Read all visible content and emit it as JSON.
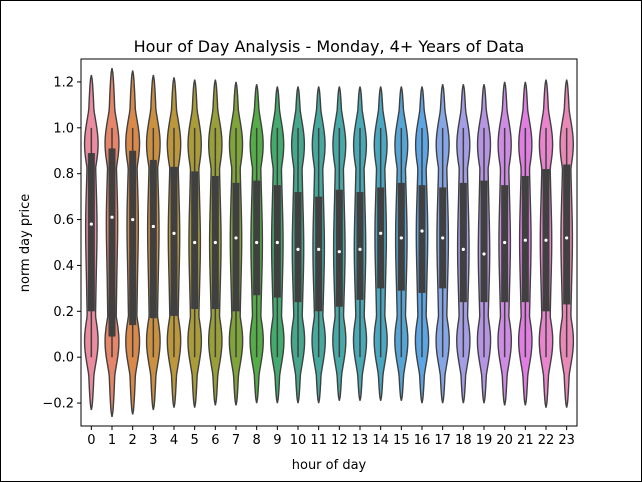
{
  "chart_data": {
    "type": "violin",
    "title": "Hour of Day Analysis - Monday, 4+ Years of Data",
    "xlabel": "hour of day",
    "ylabel": "norm day price",
    "categories": [
      "0",
      "1",
      "2",
      "3",
      "4",
      "5",
      "6",
      "7",
      "8",
      "9",
      "10",
      "11",
      "12",
      "13",
      "14",
      "15",
      "16",
      "17",
      "18",
      "19",
      "20",
      "21",
      "22",
      "23"
    ],
    "ylim": [
      -0.3,
      1.3
    ],
    "yticks": [
      -0.2,
      0.0,
      0.2,
      0.4,
      0.6,
      0.8,
      1.0,
      1.2
    ],
    "ytick_labels": [
      "−0.2",
      "0.0",
      "0.2",
      "0.4",
      "0.6",
      "0.8",
      "1.0",
      "1.2"
    ],
    "grid": false,
    "colors": [
      "#ea8ba0",
      "#e5856a",
      "#d9894a",
      "#cc9041",
      "#bc973b",
      "#aa9c39",
      "#999f39",
      "#7ea43a",
      "#55ad48",
      "#43ab6e",
      "#45a88c",
      "#46a99e",
      "#47a9a8",
      "#49a9b4",
      "#4aa8c3",
      "#55a6d7",
      "#5da6e6",
      "#86a7e7",
      "#a39ee5",
      "#b695e5",
      "#cf8ce5",
      "#e07ee2",
      "#e885cc",
      "#ea89b7"
    ],
    "medians": [
      0.58,
      0.61,
      0.6,
      0.57,
      0.54,
      0.5,
      0.5,
      0.52,
      0.5,
      0.5,
      0.47,
      0.47,
      0.46,
      0.47,
      0.54,
      0.52,
      0.55,
      0.52,
      0.47,
      0.45,
      0.5,
      0.51,
      0.51,
      0.52
    ],
    "q1": [
      0.2,
      0.09,
      0.14,
      0.17,
      0.18,
      0.21,
      0.21,
      0.2,
      0.27,
      0.26,
      0.24,
      0.2,
      0.22,
      0.25,
      0.3,
      0.29,
      0.28,
      0.3,
      0.24,
      0.24,
      0.24,
      0.24,
      0.2,
      0.23
    ],
    "q3": [
      0.89,
      0.91,
      0.9,
      0.86,
      0.83,
      0.81,
      0.79,
      0.76,
      0.77,
      0.75,
      0.72,
      0.7,
      0.73,
      0.72,
      0.74,
      0.76,
      0.75,
      0.74,
      0.76,
      0.77,
      0.75,
      0.79,
      0.82,
      0.84
    ],
    "whisker_low": [
      0.0,
      0.0,
      0.0,
      0.0,
      0.0,
      0.0,
      0.0,
      0.0,
      0.0,
      0.0,
      0.0,
      0.0,
      0.0,
      0.0,
      0.0,
      0.0,
      0.0,
      0.0,
      0.0,
      0.0,
      0.0,
      0.0,
      0.0,
      0.0
    ],
    "whisker_high": [
      1.0,
      1.0,
      1.0,
      1.0,
      1.0,
      1.0,
      1.0,
      1.0,
      1.0,
      1.0,
      1.0,
      1.0,
      1.0,
      1.0,
      1.0,
      1.0,
      1.0,
      1.0,
      1.0,
      1.0,
      1.0,
      1.0,
      1.0,
      1.0
    ],
    "min": [
      -0.23,
      -0.26,
      -0.25,
      -0.23,
      -0.22,
      -0.22,
      -0.21,
      -0.21,
      -0.2,
      -0.2,
      -0.2,
      -0.2,
      -0.19,
      -0.19,
      -0.19,
      -0.19,
      -0.2,
      -0.2,
      -0.2,
      -0.2,
      -0.21,
      -0.21,
      -0.22,
      -0.22
    ],
    "max": [
      1.23,
      1.26,
      1.25,
      1.23,
      1.22,
      1.21,
      1.21,
      1.2,
      1.19,
      1.18,
      1.18,
      1.18,
      1.18,
      1.18,
      1.18,
      1.18,
      1.18,
      1.19,
      1.19,
      1.19,
      1.2,
      1.2,
      1.21,
      1.21
    ]
  }
}
